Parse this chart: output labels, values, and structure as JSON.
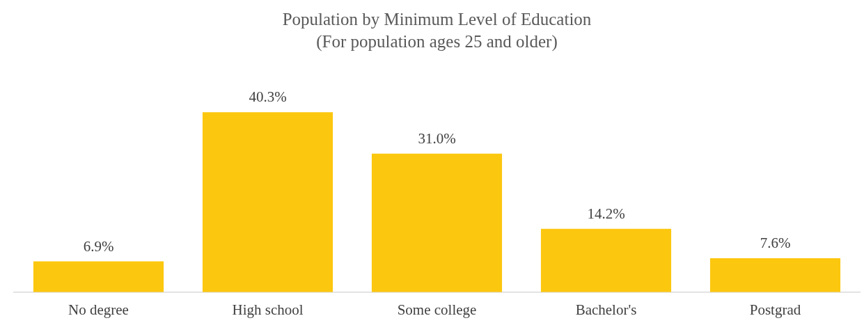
{
  "chart_data": {
    "type": "bar",
    "title": "Population by Minimum Level of Education",
    "subtitle": "(For population ages 25 and older)",
    "categories": [
      "No degree",
      "High school",
      "Some college",
      "Bachelor's",
      "Postgrad"
    ],
    "values": [
      6.9,
      40.3,
      31.0,
      14.2,
      7.6
    ],
    "value_labels": [
      "6.9%",
      "40.3%",
      "31.0%",
      "14.2%",
      "7.6%"
    ],
    "color": "#fcc70f",
    "grid": false,
    "legend": false
  }
}
